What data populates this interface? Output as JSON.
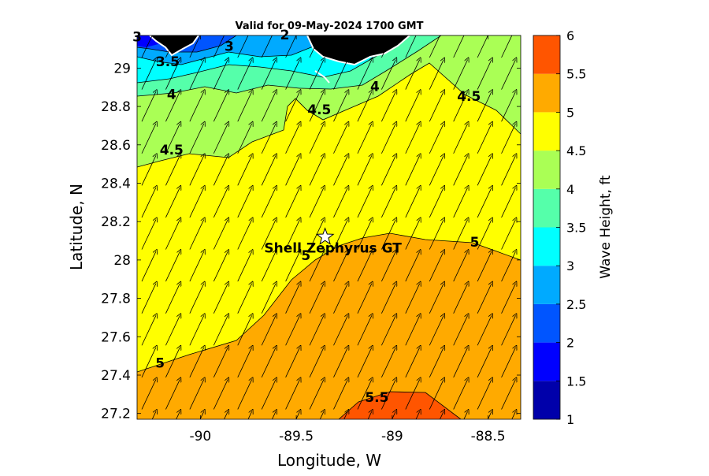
{
  "title": "Valid for 09-May-2024 1700 GMT",
  "xlabel": "Longitude, W",
  "ylabel": "Latitude, N",
  "colorbar_label": "Wave Height, ft",
  "station": {
    "name": "Shell Zephyrus GT",
    "lon": -89.35,
    "lat": 28.12
  },
  "axes": {
    "xlim": [
      -90.33,
      -88.33
    ],
    "ylim": [
      27.17,
      29.17
    ],
    "x_ticks": [
      -90,
      -89.5,
      -89,
      -88.5
    ],
    "x_tick_labels": [
      "-90",
      "-89.5",
      "-89",
      "-88.5"
    ],
    "y_ticks": [
      27.2,
      27.4,
      27.6,
      27.8,
      28,
      28.2,
      28.4,
      28.6,
      28.8,
      29
    ],
    "y_tick_labels": [
      "27.2",
      "27.4",
      "27.6",
      "27.8",
      "28",
      "28.2",
      "28.4",
      "28.6",
      "28.8",
      "29"
    ]
  },
  "colorbar": {
    "levels": [
      1,
      1.5,
      2,
      2.5,
      3,
      3.5,
      4,
      4.5,
      5,
      5.5,
      6
    ],
    "tick_labels": [
      "1",
      "1.5",
      "2",
      "2.5",
      "3",
      "3.5",
      "4",
      "4.5",
      "5",
      "5.5",
      "6"
    ],
    "colors": [
      "#0000aa",
      "#0000ff",
      "#0055ff",
      "#00aaff",
      "#00ffff",
      "#55ffaa",
      "#aaff55",
      "#ffff00",
      "#ffaa00",
      "#ff5500"
    ]
  },
  "contour_labels": [
    {
      "text": "3",
      "lon": -90.33,
      "lat": 29.14
    },
    {
      "text": "2",
      "lon": -89.56,
      "lat": 29.15
    },
    {
      "text": "3",
      "lon": -89.85,
      "lat": 29.09
    },
    {
      "text": "3.5",
      "lon": -90.17,
      "lat": 29.01
    },
    {
      "text": "4",
      "lon": -89.09,
      "lat": 28.88
    },
    {
      "text": "4",
      "lon": -90.15,
      "lat": 28.84
    },
    {
      "text": "4.5",
      "lon": -88.6,
      "lat": 28.83
    },
    {
      "text": "4.5",
      "lon": -89.38,
      "lat": 28.76
    },
    {
      "text": "4.5",
      "lon": -90.15,
      "lat": 28.55
    },
    {
      "text": "5",
      "lon": -88.57,
      "lat": 28.07
    },
    {
      "text": "5",
      "lon": -89.45,
      "lat": 28.0
    },
    {
      "text": "5",
      "lon": -90.21,
      "lat": 27.44
    },
    {
      "text": "5.5",
      "lon": -89.08,
      "lat": 27.26
    }
  ],
  "wave_direction": {
    "dx": 0.085,
    "dy": -0.18,
    "note_visible": false
  },
  "colors": {
    "land": "#000000",
    "coast": "#ffffff",
    "contour_line": "#000000",
    "star_fill": "#ffffff"
  }
}
